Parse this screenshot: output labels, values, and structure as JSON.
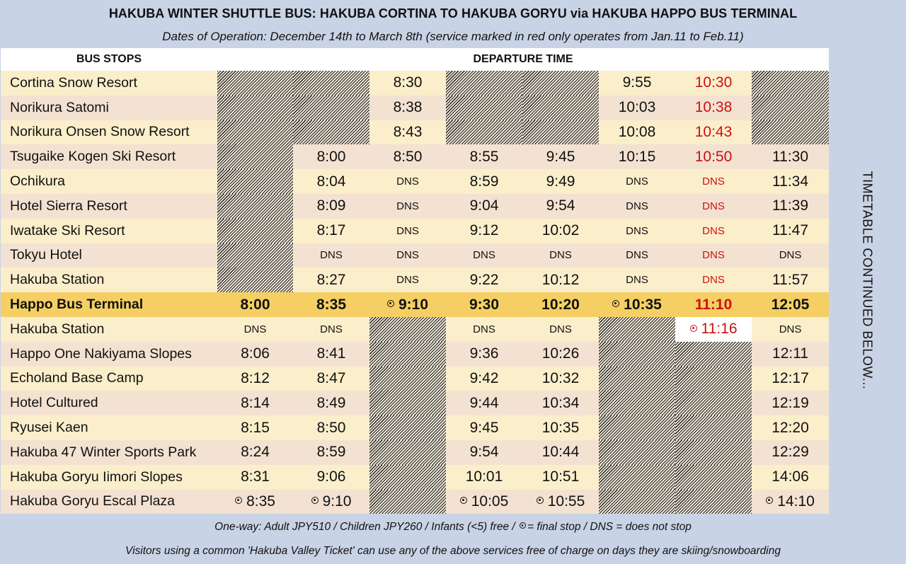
{
  "title": "HAKUBA WINTER SHUTTLE BUS: HAKUBA CORTINA TO HAKUBA GORYU via HAKUBA HAPPO BUS TERMINAL",
  "subtitle": "Dates of Operation: December 14th to March 8th (service marked in red only operates from Jan.11 to Feb.11)",
  "header": {
    "stops_label": "BUS STOPS",
    "departure_label": "DEPARTURE TIME"
  },
  "side_note": "TIMETABLE CONTINUED BELOW...",
  "colors": {
    "background": "#c9d3e6",
    "row_light": "#fbeecb",
    "row_dark": "#f3e2d1",
    "terminal_row": "#f5cf63",
    "red_service": "#cc1111"
  },
  "legend": {
    "icon": "final-stop-icon",
    "red_service_note": "service marked in red only operates from Jan.11 to Feb.11"
  },
  "footer": {
    "fare_before": "One-way: Adult JPY510 / Children JPY260 / Infants (<5) free / ",
    "fare_after": "= final stop / DNS = does not stop",
    "ticket_note": "Visitors using a common 'Hakuba Valley Ticket' can use any of the above services free of charge on days they are skiing/snowboarding"
  },
  "rows": [
    {
      "stop": "Cortina Snow Resort",
      "times": [
        "",
        "",
        "8:30",
        "",
        "",
        "9:55",
        "10:30",
        ""
      ]
    },
    {
      "stop": "Norikura Satomi",
      "times": [
        "",
        "",
        "8:38",
        "",
        "",
        "10:03",
        "10:38",
        ""
      ]
    },
    {
      "stop": "Norikura Onsen Snow Resort",
      "times": [
        "",
        "",
        "8:43",
        "",
        "",
        "10:08",
        "10:43",
        ""
      ]
    },
    {
      "stop": "Tsugaike Kogen Ski Resort",
      "times": [
        "",
        "8:00",
        "8:50",
        "8:55",
        "9:45",
        "10:15",
        "10:50",
        "11:30"
      ]
    },
    {
      "stop": "Ochikura",
      "times": [
        "",
        "8:04",
        "DNS",
        "8:59",
        "9:49",
        "DNS",
        "DNS",
        "11:34"
      ]
    },
    {
      "stop": "Hotel Sierra Resort",
      "times": [
        "",
        "8:09",
        "DNS",
        "9:04",
        "9:54",
        "DNS",
        "DNS",
        "11:39"
      ]
    },
    {
      "stop": "Iwatake Ski Resort",
      "times": [
        "",
        "8:17",
        "DNS",
        "9:12",
        "10:02",
        "DNS",
        "DNS",
        "11:47"
      ]
    },
    {
      "stop": "Tokyu Hotel",
      "times": [
        "",
        "DNS",
        "DNS",
        "DNS",
        "DNS",
        "DNS",
        "DNS",
        "DNS"
      ]
    },
    {
      "stop": "Hakuba Station",
      "times": [
        "",
        "8:27",
        "DNS",
        "9:22",
        "10:12",
        "DNS",
        "DNS",
        "11:57"
      ]
    },
    {
      "stop": "Happo Bus Terminal",
      "times": [
        "8:00",
        "8:35",
        "9:10",
        "9:30",
        "10:20",
        "10:35",
        "11:10",
        "12:05"
      ]
    },
    {
      "stop": "Hakuba Station",
      "times": [
        "DNS",
        "DNS",
        "",
        "DNS",
        "DNS",
        "",
        "11:16",
        "DNS"
      ]
    },
    {
      "stop": "Happo One Nakiyama Slopes",
      "times": [
        "8:06",
        "8:41",
        "",
        "9:36",
        "10:26",
        "",
        "",
        "12:11"
      ]
    },
    {
      "stop": "Echoland Base Camp",
      "times": [
        "8:12",
        "8:47",
        "",
        "9:42",
        "10:32",
        "",
        "",
        "12:17"
      ]
    },
    {
      "stop": "Hotel Cultured",
      "times": [
        "8:14",
        "8:49",
        "",
        "9:44",
        "10:34",
        "",
        "",
        "12:19"
      ]
    },
    {
      "stop": "Ryusei Kaen",
      "times": [
        "8:15",
        "8:50",
        "",
        "9:45",
        "10:35",
        "",
        "",
        "12:20"
      ]
    },
    {
      "stop": "Hakuba 47 Winter Sports Park",
      "times": [
        "8:24",
        "8:59",
        "",
        "9:54",
        "10:44",
        "",
        "",
        "12:29"
      ]
    },
    {
      "stop": "Hakuba Goryu Iimori Slopes",
      "times": [
        "8:31",
        "9:06",
        "",
        "10:01",
        "10:51",
        "",
        "",
        "14:06"
      ]
    },
    {
      "stop": "Hakuba Goryu Escal Plaza",
      "times": [
        "8:35",
        "9:10",
        "",
        "10:05",
        "10:55",
        "",
        "",
        "14:10"
      ]
    }
  ]
}
